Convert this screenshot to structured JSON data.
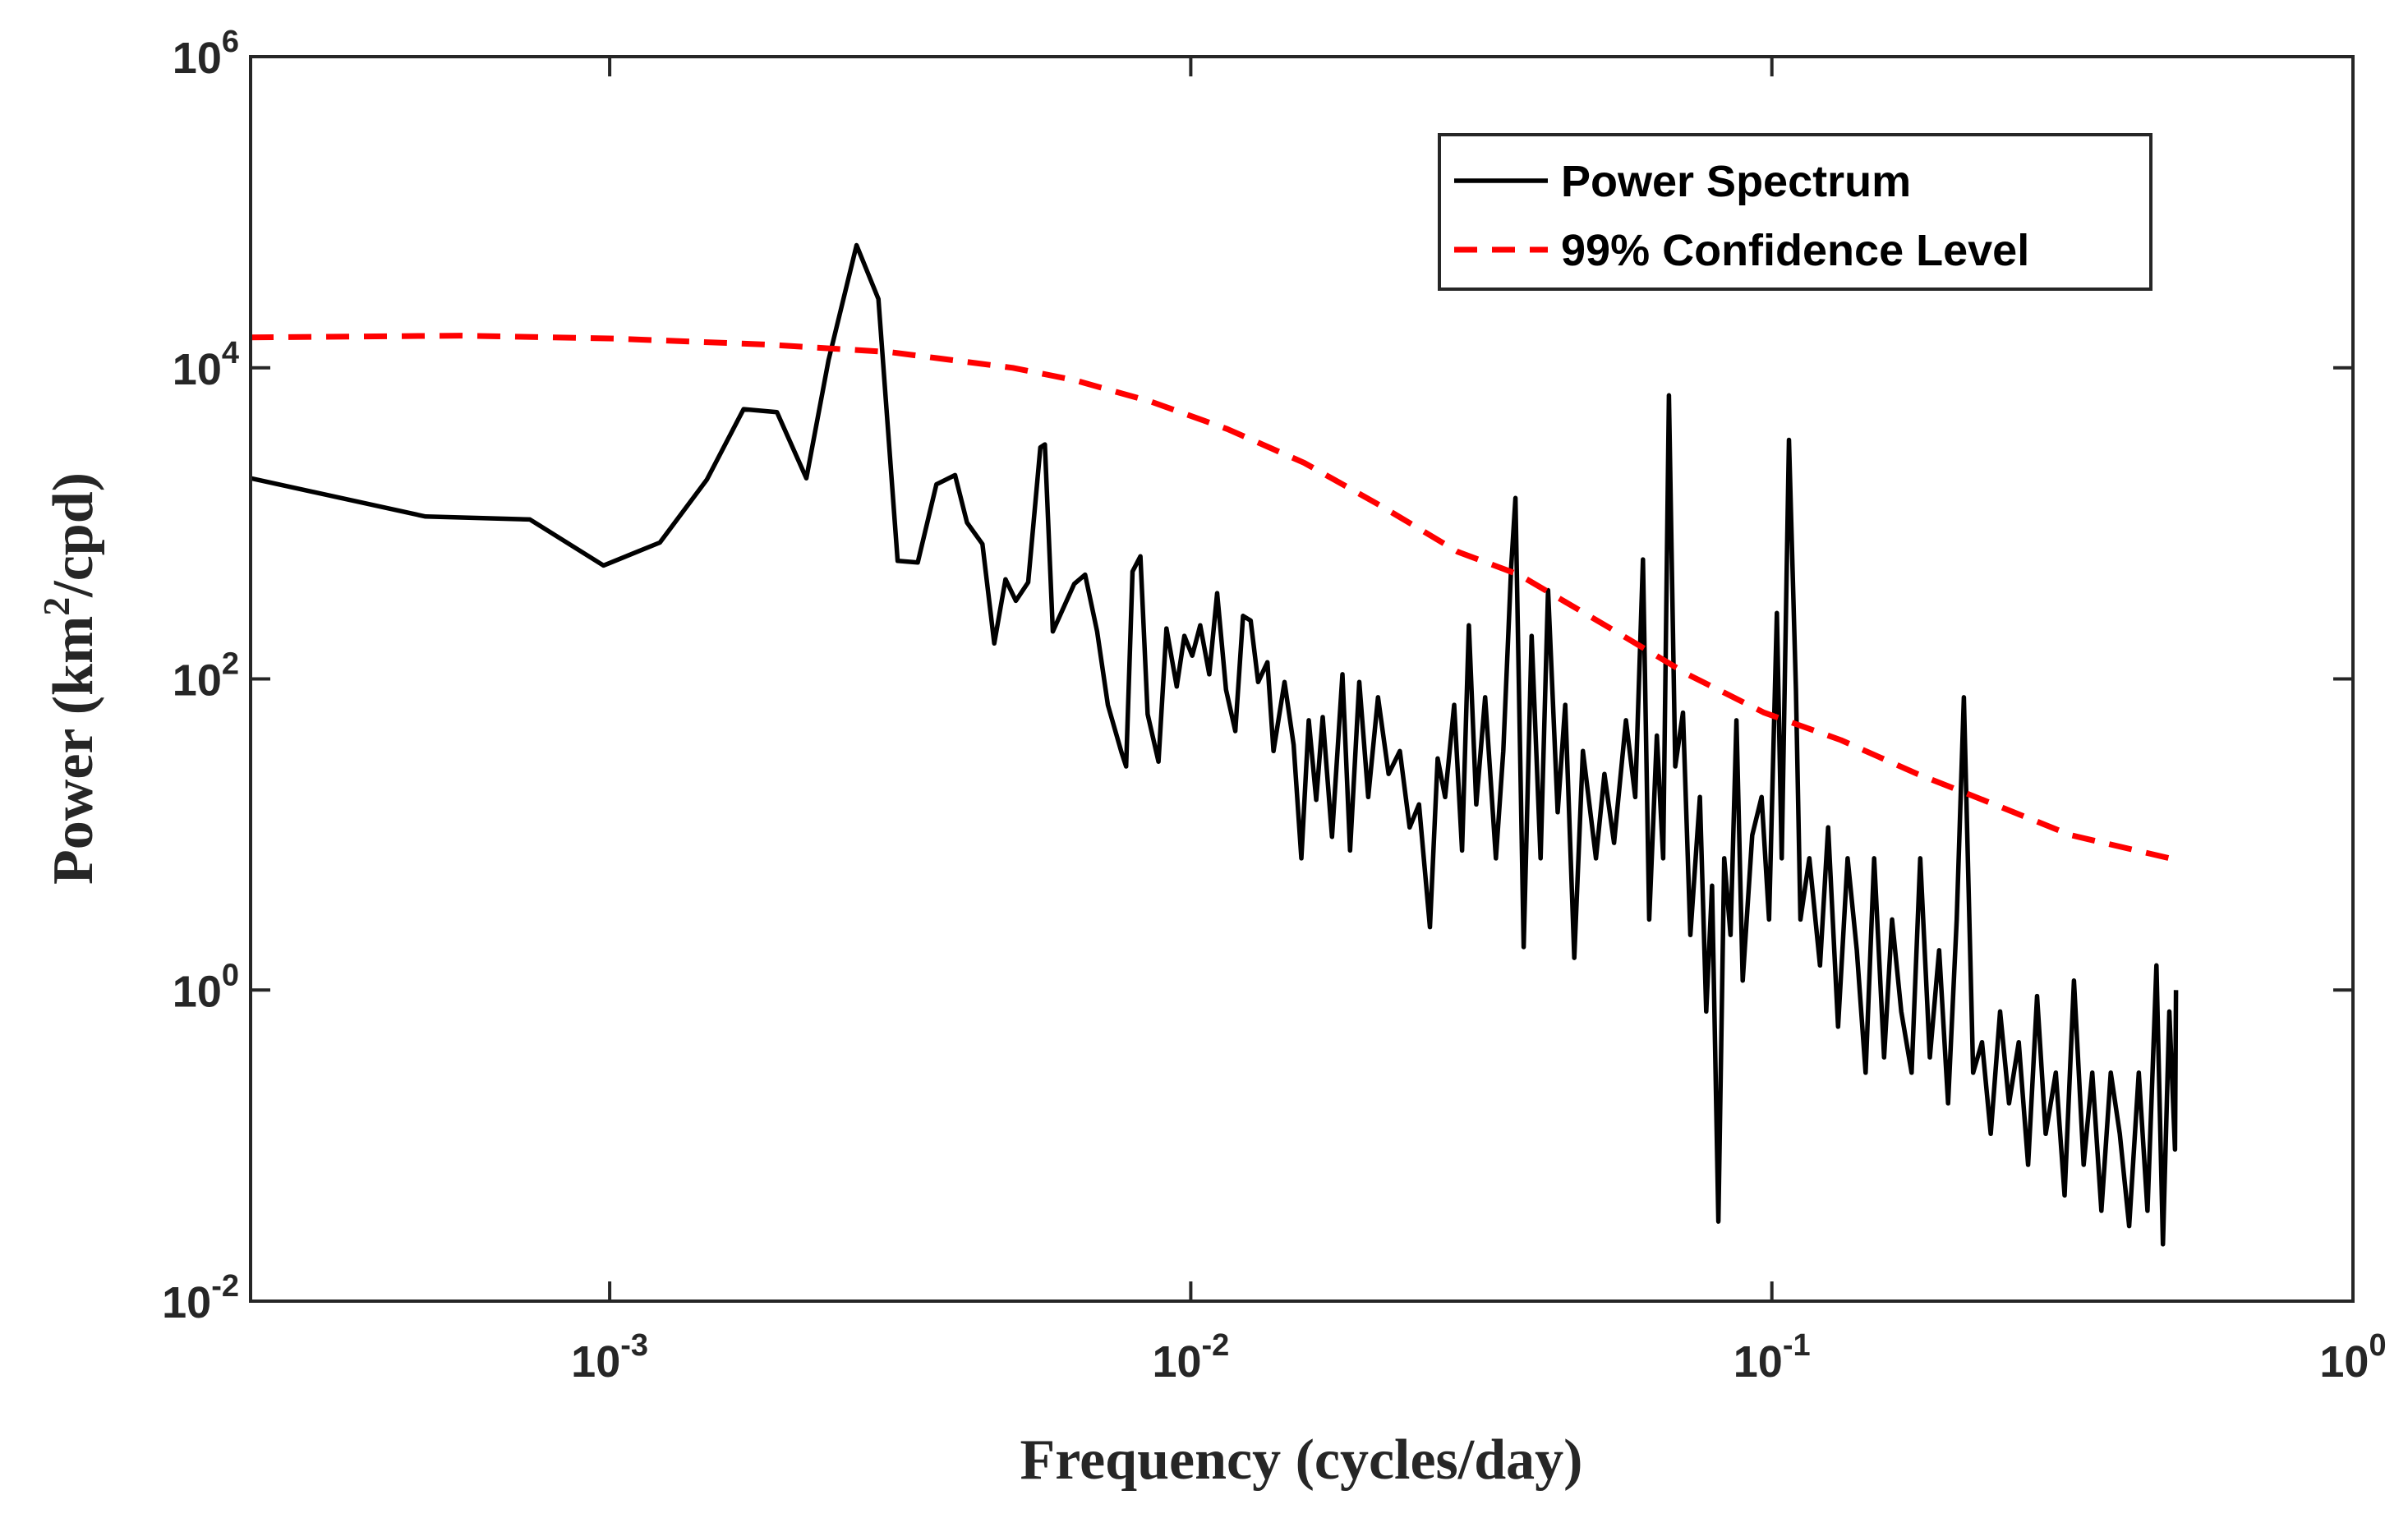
{
  "chart_data": {
    "type": "line",
    "xlabel": "Frequency (cycles/day)",
    "ylabel": {
      "text": "Power (km",
      "sup": "2",
      "rest": "/cpd)"
    },
    "xscale": "log",
    "yscale": "log",
    "xlim": [
      0.000241,
      1
    ],
    "ylim": [
      0.01,
      1000000
    ],
    "xticks": [
      {
        "value": 0.001,
        "label": "10",
        "exponent": "-3"
      },
      {
        "value": 0.01,
        "label": "10",
        "exponent": "-2"
      },
      {
        "value": 0.1,
        "label": "10",
        "exponent": "-1"
      },
      {
        "value": 1,
        "label": "10",
        "exponent": "0"
      }
    ],
    "yticks": [
      {
        "value": 0.01,
        "label": "10",
        "exponent": "-2"
      },
      {
        "value": 1,
        "label": "10",
        "exponent": "0"
      },
      {
        "value": 100,
        "label": "10",
        "exponent": "2"
      },
      {
        "value": 10000,
        "label": "10",
        "exponent": "4"
      },
      {
        "value": 1000000,
        "label": "10",
        "exponent": "6"
      }
    ],
    "grid": false,
    "legend": "upper right",
    "series": [
      {
        "name": "Power Spectrum",
        "color": "#000000",
        "style": "solid",
        "x": [
          0.000241,
          0.000482,
          0.000729,
          0.000976,
          0.00122,
          0.00147,
          0.0017,
          0.00194,
          0.00218,
          0.00238,
          0.00266,
          0.0029,
          0.00313,
          0.00339,
          0.00365,
          0.00393,
          0.00412,
          0.00438,
          0.00459,
          0.0048,
          0.005,
          0.00525,
          0.00551,
          0.00561,
          0.00579,
          0.0063,
          0.00658,
          0.0069,
          0.0072,
          0.0076,
          0.00774,
          0.00794,
          0.00819,
          0.00843,
          0.0088,
          0.00908,
          0.00946,
          0.00975,
          0.01006,
          0.01038,
          0.01076,
          0.0111,
          0.0115,
          0.01193,
          0.0123,
          0.01268,
          0.01306,
          0.01355,
          0.01388,
          0.0145,
          0.01503,
          0.0155,
          0.01596,
          0.01644,
          0.01687,
          0.0175,
          0.01824,
          0.0188,
          0.0195,
          0.0202,
          0.021,
          0.0219,
          0.0229,
          0.0238,
          0.0247,
          0.0258,
          0.0266,
          0.0274,
          0.0284,
          0.0293,
          0.0301,
          0.031,
          0.0321,
          0.0335,
          0.0345,
          0.0356,
          0.0362,
          0.0374,
          0.0386,
          0.04,
          0.0412,
          0.0428,
          0.0441,
          0.0457,
          0.0473,
          0.0498,
          0.0515,
          0.0535,
          0.0561,
          0.0582,
          0.06,
          0.0615,
          0.0634,
          0.065,
          0.0665,
          0.0682,
          0.0703,
          0.0724,
          0.0752,
          0.0771,
          0.0789,
          0.0809,
          0.0828,
          0.0849,
          0.0869,
          0.0891,
          0.0925,
          0.096,
          0.0989,
          0.102,
          0.104,
          0.107,
          0.11,
          0.112,
          0.116,
          0.121,
          0.125,
          0.13,
          0.135,
          0.14,
          0.145,
          0.15,
          0.156,
          0.161,
          0.167,
          0.174,
          0.18,
          0.187,
          0.194,
          0.201,
          0.208,
          0.214,
          0.222,
          0.23,
          0.238,
          0.247,
          0.256,
          0.266,
          0.276,
          0.286,
          0.296,
          0.308,
          0.319,
          0.331,
          0.344,
          0.356,
          0.369,
          0.383,
          0.397,
          0.412,
          0.428,
          0.443,
          0.459,
          0.471,
          0.483,
          0.494,
          0.496
        ],
        "values": [
          1950,
          1107,
          1059,
          536,
          753,
          1910,
          5420,
          5180,
          1950,
          11200,
          61400,
          27700,
          574,
          561,
          1782,
          2042,
          1012,
          736,
          169,
          437,
          318,
          418,
          3076,
          3214,
          202,
          408,
          468,
          202,
          68,
          33.7,
          27.4,
          490,
          614,
          59.3,
          29.4,
          211,
          89.3,
          189,
          141,
          221,
          107,
          356,
          85.3,
          46.2,
          254,
          237,
          95.5,
          128,
          34.4,
          95.5,
          37.7,
          7.03,
          54.2,
          16.7,
          56.8,
          9.66,
          107,
          7.89,
          95.5,
          17.4,
          76.2,
          24.5,
          34.4,
          11.1,
          15.6,
          2.54,
          30.8,
          17.4,
          68.1,
          7.89,
          221,
          15.6,
          76.2,
          7.03,
          34.4,
          524,
          1455,
          1.89,
          189,
          7.03,
          372,
          13.9,
          68.1,
          1.61,
          34.4,
          7.03,
          24.5,
          8.83,
          54.2,
          17.4,
          586,
          2.84,
          43.2,
          7.03,
          6650,
          27.4,
          60.7,
          2.26,
          17.4,
          0.728,
          4.68,
          0.0325,
          7.03,
          2.26,
          54.2,
          1.15,
          9.89,
          17.4,
          2.84,
          265,
          7.03,
          3440,
          85.3,
          2.84,
          7.03,
          1.44,
          11.1,
          0.581,
          7.03,
          1.8,
          0.294,
          7.03,
          0.369,
          2.84,
          0.728,
          0.294,
          7.03,
          0.369,
          1.8,
          0.187,
          2.84,
          76.2,
          0.294,
          0.462,
          0.119,
          0.728,
          0.187,
          0.462,
          0.0753,
          0.914,
          0.119,
          0.294,
          0.0479,
          1.15,
          0.0753,
          0.294,
          0.0381,
          0.294,
          0.119,
          0.0304,
          0.294,
          0.0381,
          1.44,
          0.0232,
          0.728,
          0.0944,
          1.0
        ]
      },
      {
        "name": "99% Confidence Level",
        "color": "#ff0000",
        "style": "dashed",
        "x": [
          0.000241,
          0.000555,
          0.00102,
          0.00187,
          0.00304,
          0.00494,
          0.0063,
          0.00853,
          0.01156,
          0.01567,
          0.0212,
          0.0288,
          0.0367,
          0.0528,
          0.0716,
          0.097,
          0.1315,
          0.178,
          0.2415,
          0.327,
          0.494
        ],
        "values": [
          15700,
          16100,
          15400,
          14100,
          12600,
          10000,
          8340,
          6070,
          4040,
          2450,
          1300,
          657,
          468,
          211,
          107,
          60.7,
          40.4,
          24.5,
          15.6,
          9.9,
          6.9
        ]
      }
    ]
  }
}
